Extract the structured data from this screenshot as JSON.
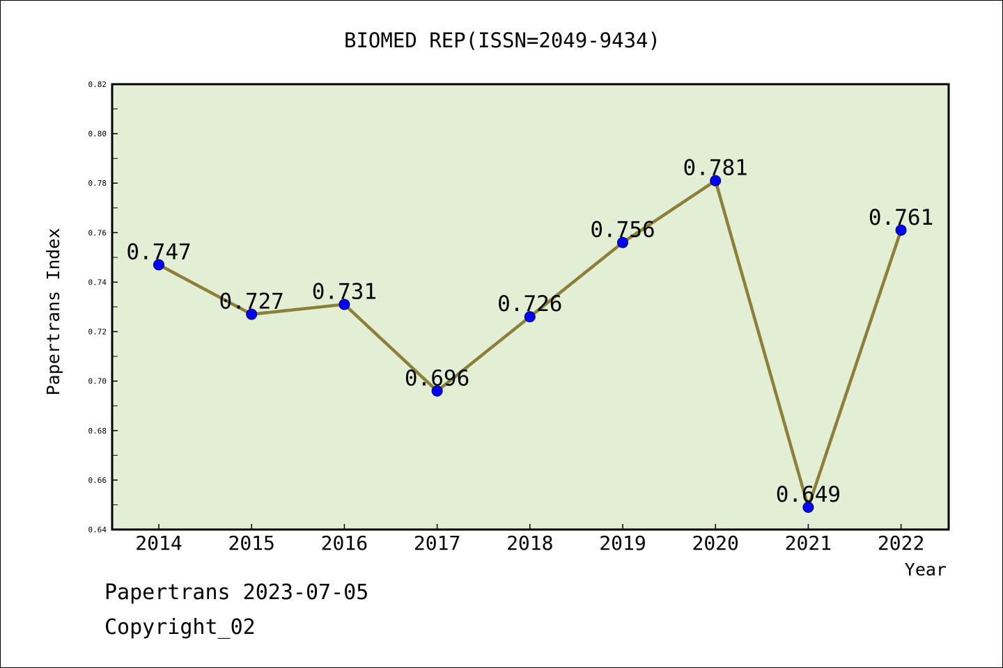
{
  "colors": {
    "plot_background": "#e2efd5",
    "line": "#8c7f3a",
    "marker": "#0000ff",
    "axis": "#000000"
  },
  "footer": {
    "line1": "Papertrans 2023-07-05",
    "line2": "Copyright_02"
  },
  "chart_data": {
    "type": "line",
    "title": "BIOMED REP(ISSN=2049-9434)",
    "xlabel": "Year",
    "ylabel": "Papertrans Index",
    "categories": [
      "2014",
      "2015",
      "2016",
      "2017",
      "2018",
      "2019",
      "2020",
      "2021",
      "2022"
    ],
    "values": [
      0.747,
      0.727,
      0.731,
      0.696,
      0.726,
      0.756,
      0.781,
      0.649,
      0.761
    ],
    "data_labels": [
      "0.747",
      "0.727",
      "0.731",
      "0.696",
      "0.726",
      "0.756",
      "0.781",
      "0.649",
      "0.761"
    ],
    "ylim": [
      0.64,
      0.82
    ],
    "yticks": [
      "0.64",
      "0.66",
      "0.68",
      "0.70",
      "0.72",
      "0.74",
      "0.76",
      "0.78",
      "0.80",
      "0.82"
    ],
    "grid": false,
    "legend": "none"
  }
}
